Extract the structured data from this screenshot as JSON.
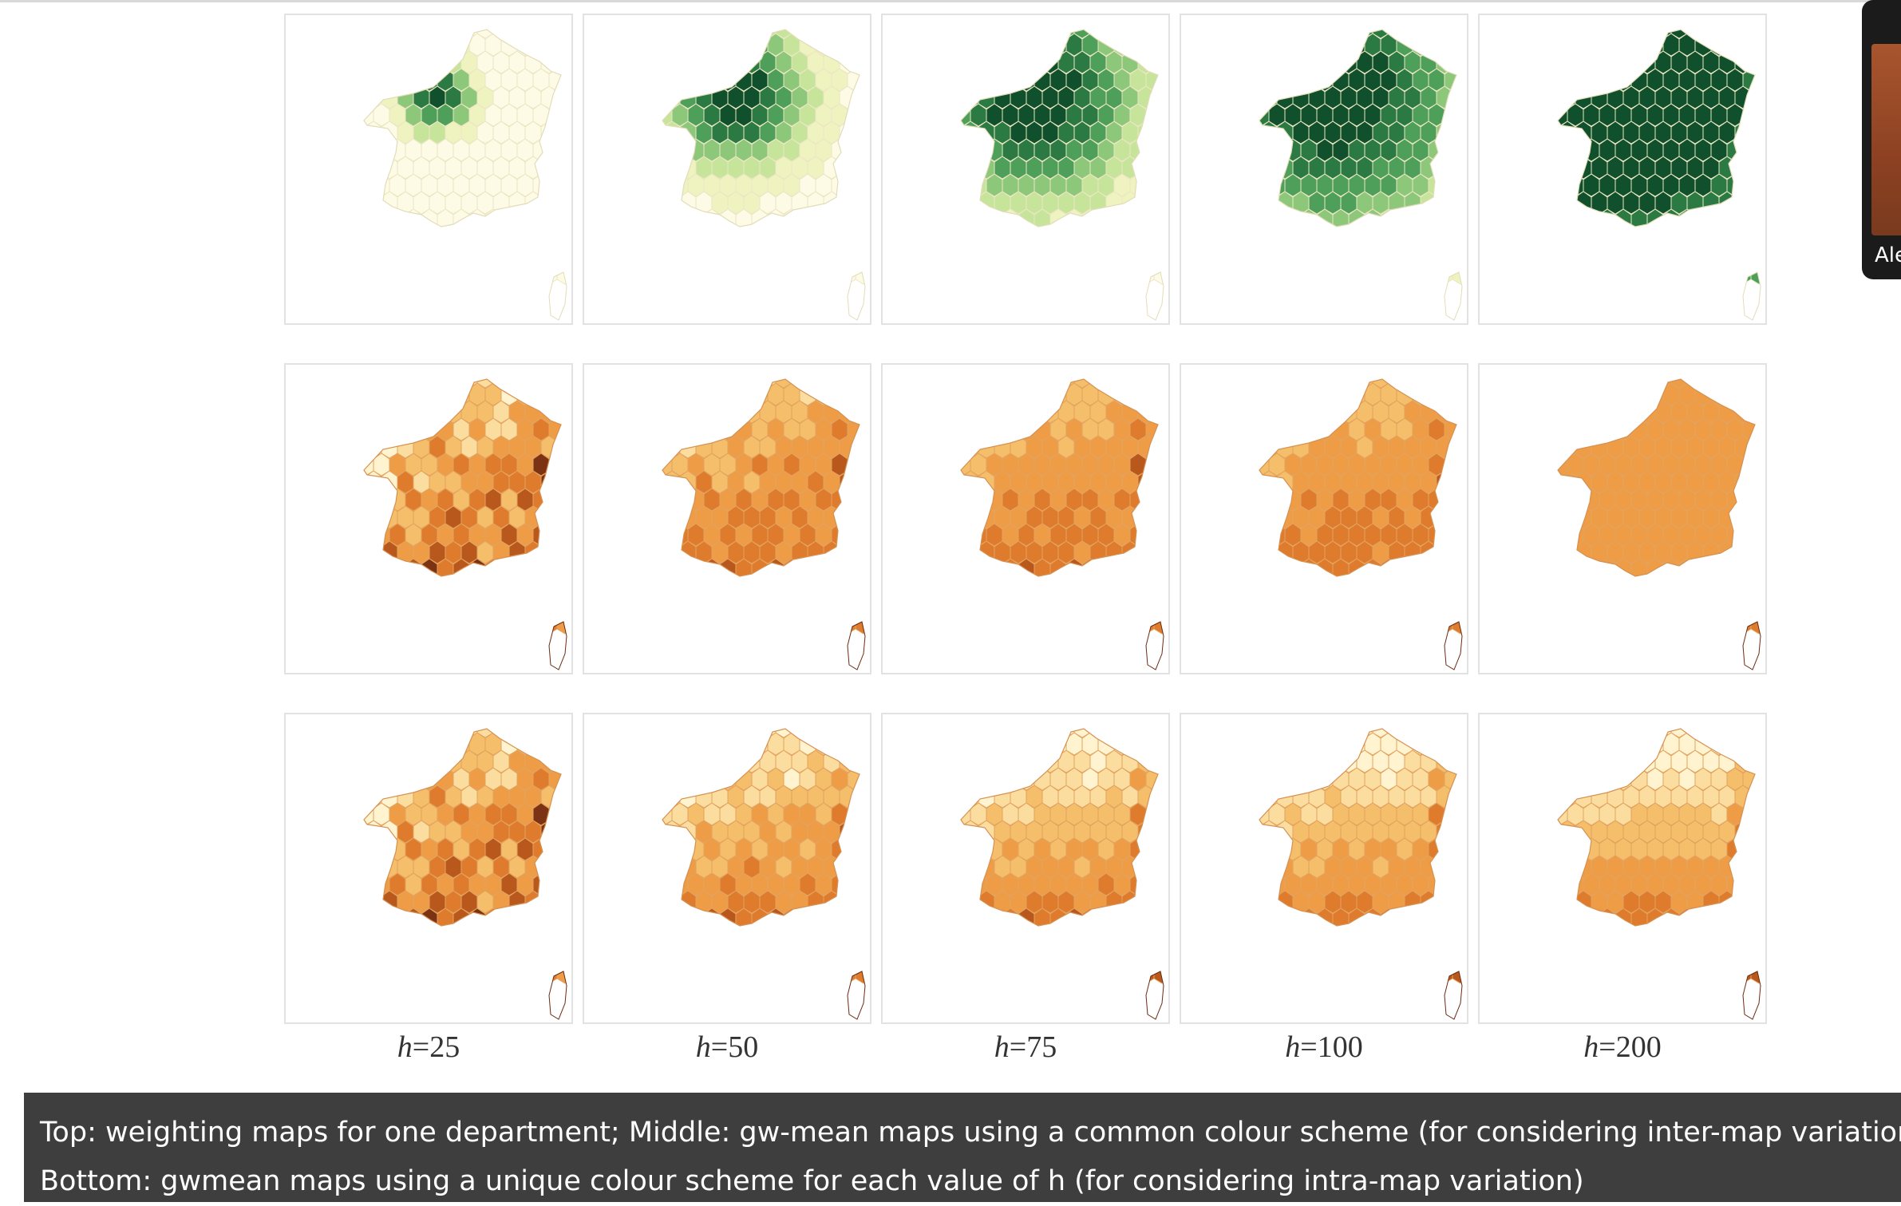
{
  "figure": {
    "rows": [
      "top",
      "middle",
      "bottom"
    ],
    "bandwidth_labels": [
      {
        "prefix": "h",
        "rest": "=25"
      },
      {
        "prefix": "h",
        "rest": "=50"
      },
      {
        "prefix": "h",
        "rest": "=75"
      },
      {
        "prefix": "h",
        "rest": "=100"
      },
      {
        "prefix": "h",
        "rest": "=200"
      }
    ],
    "bandwidths": [
      25,
      50,
      75,
      100,
      200
    ],
    "colours": {
      "green_scheme": [
        "#fdfbe6",
        "#eef3bf",
        "#c6e49a",
        "#8dc77a",
        "#4e9f5a",
        "#2c7a43",
        "#10502c"
      ],
      "orange_scheme": [
        "#fff4cf",
        "#fbdd9f",
        "#f5be6a",
        "#ee9c45",
        "#de7b2c",
        "#b9581d",
        "#7c3314"
      ]
    }
  },
  "caption": {
    "line1": "Top: weighting maps for one department; Middle: gw-mean maps using a common colour scheme (for considering inter-map variation);",
    "line2": "Bottom: gwmean maps using a unique colour scheme for each value of h (for considering intra-map variation)"
  },
  "participant": {
    "name": "Ale"
  }
}
